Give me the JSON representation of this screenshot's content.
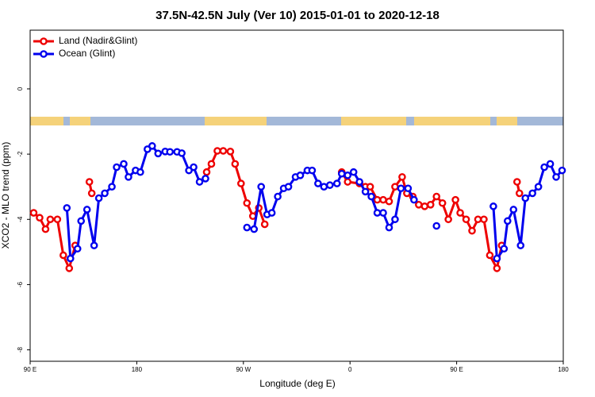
{
  "chart_data": {
    "type": "line",
    "title": "37.5N-42.5N July (Ver 10)   2015-01-01 to 2020-12-18",
    "x_label": "Longitude (deg E)",
    "y_label": "XCO2 - MLO trend (ppm)",
    "xlim": [
      90,
      540
    ],
    "ylim": [
      -8.35,
      1.8
    ],
    "xticks": [
      {
        "value": 90,
        "label": "90 E"
      },
      {
        "value": 180,
        "label": "180"
      },
      {
        "value": 270,
        "label": "90 W"
      },
      {
        "value": 360,
        "label": "0"
      },
      {
        "value": 450,
        "label": "90 E"
      },
      {
        "value": 540,
        "label": "180"
      }
    ],
    "yticks": [
      0,
      -2,
      -4,
      -6,
      -8
    ],
    "legend": "top-left",
    "series": [
      {
        "name": "Land (Nadir&Glint)",
        "color": "#ee0000",
        "x": [
          93,
          98,
          103,
          107,
          113,
          118,
          123,
          128,
          null,
          140,
          142,
          null,
          239,
          243,
          248,
          253,
          259,
          263,
          268,
          273,
          278,
          283,
          288,
          null,
          353,
          358,
          368,
          373,
          377,
          383,
          388,
          393,
          398,
          404,
          408,
          413,
          418,
          423,
          428,
          433,
          438,
          443,
          449,
          453,
          458,
          463,
          468,
          473,
          478,
          484,
          488,
          null,
          501,
          503
        ],
        "values": [
          -3.8,
          -3.95,
          -4.3,
          -4.0,
          -4.0,
          -5.1,
          -5.5,
          -4.8,
          null,
          -2.85,
          -3.2,
          null,
          -2.55,
          -2.3,
          -1.9,
          -1.9,
          -1.92,
          -2.3,
          -2.9,
          -3.5,
          -3.9,
          -3.65,
          -4.15,
          null,
          -2.55,
          -2.85,
          -2.9,
          -3.0,
          -3.0,
          -3.4,
          -3.4,
          -3.45,
          -3.0,
          -2.7,
          -3.2,
          -3.3,
          -3.55,
          -3.6,
          -3.55,
          -3.3,
          -3.5,
          -4.0,
          -3.4,
          -3.8,
          -4.0,
          -4.35,
          -4.0,
          -4.0,
          -5.1,
          -5.5,
          -4.8,
          null,
          -2.85,
          -3.2
        ]
      },
      {
        "name": "Ocean (Glint)",
        "color": "#0000ee",
        "x": [
          121,
          124,
          130,
          133,
          138,
          144,
          148,
          153,
          159,
          163,
          169,
          173,
          179,
          183,
          189,
          193,
          198,
          204,
          208,
          214,
          218,
          224,
          228,
          233,
          238,
          null,
          273,
          279,
          285,
          290,
          294,
          299,
          304,
          308,
          314,
          318,
          324,
          328,
          333,
          338,
          343,
          349,
          353,
          358,
          363,
          368,
          373,
          378,
          383,
          388,
          393,
          398,
          403,
          409,
          414,
          null,
          433,
          null,
          481,
          484,
          490,
          493,
          498,
          504,
          508,
          514,
          519,
          524,
          529,
          534,
          539
        ],
        "values": [
          -3.65,
          -5.2,
          -4.9,
          -4.05,
          -3.7,
          -4.8,
          -3.35,
          -3.2,
          -3.0,
          -2.4,
          -2.3,
          -2.7,
          -2.5,
          -2.55,
          -1.85,
          -1.75,
          -1.98,
          -1.92,
          -1.93,
          -1.93,
          -1.97,
          -2.5,
          -2.4,
          -2.85,
          -2.75,
          null,
          -4.25,
          -4.3,
          -3.0,
          -3.85,
          -3.8,
          -3.3,
          -3.05,
          -3.0,
          -2.7,
          -2.65,
          -2.5,
          -2.5,
          -2.9,
          -3.0,
          -2.95,
          -2.9,
          -2.6,
          -2.65,
          -2.55,
          -2.85,
          -3.15,
          -3.3,
          -3.8,
          -3.8,
          -4.25,
          -4.0,
          -3.05,
          -3.05,
          -3.4,
          null,
          -4.2,
          null,
          -3.6,
          -5.2,
          -4.9,
          -4.05,
          -3.7,
          -4.8,
          -3.35,
          -3.2,
          -3.0,
          -2.4,
          -2.3,
          -2.7,
          -2.5
        ]
      }
    ]
  }
}
